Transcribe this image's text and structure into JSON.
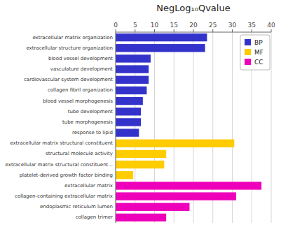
{
  "chart_data": {
    "type": "bar",
    "orientation": "horizontal",
    "title": "NegLog₁₀Qvalue",
    "categories": [
      "extracellular matrix organization",
      "extracellular structure organization",
      "blood vessel development",
      "vasculature development",
      "cardiovascular system development",
      "collagen fibril organization",
      "blood vessel morphogenesis",
      "tube development",
      "tube morphogenesis",
      "response to lipid",
      "extracellular matrix structural constituent",
      "structural molecule activity",
      "extracellular matrix structural constituent...",
      "platelet-derived growth factor binding",
      "extracellular matrix",
      "collagen-containing extracellular matrix",
      "endoplasmic reticulum lumen",
      "collagen trimer"
    ],
    "series": [
      {
        "name": "BP",
        "color": "#3333cc",
        "values": [
          23.5,
          23.0,
          9.0,
          8.5,
          8.5,
          8.0,
          7.0,
          6.5,
          6.5,
          6.0,
          null,
          null,
          null,
          null,
          null,
          null,
          null,
          null
        ]
      },
      {
        "name": "MF",
        "color": "#ffcc00",
        "values": [
          null,
          null,
          null,
          null,
          null,
          null,
          null,
          null,
          null,
          null,
          30.5,
          13.0,
          12.5,
          4.5,
          null,
          null,
          null,
          null
        ]
      },
      {
        "name": "CC",
        "color": "#ee00bb",
        "values": [
          null,
          null,
          null,
          null,
          null,
          null,
          null,
          null,
          null,
          null,
          null,
          null,
          null,
          null,
          37.5,
          31.0,
          19.0,
          13.0
        ]
      }
    ],
    "xlim": [
      0,
      40
    ],
    "xticks": [
      0,
      5,
      10,
      15,
      20,
      25,
      30,
      35,
      40
    ],
    "grid": true,
    "legend": "upper right"
  }
}
